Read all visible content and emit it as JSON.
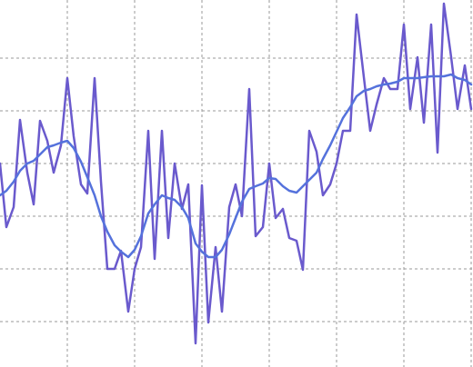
{
  "chart_data": {
    "type": "line",
    "x": [
      0,
      7,
      15,
      22,
      30,
      37,
      44,
      52,
      59,
      67,
      74,
      81,
      89,
      96,
      104,
      111,
      118,
      126,
      133,
      141,
      148,
      155,
      163,
      170,
      178,
      185,
      192,
      200,
      207,
      215,
      222,
      229,
      237,
      244,
      252,
      259,
      266,
      274,
      281,
      289,
      296,
      303,
      311,
      318,
      326,
      333,
      340,
      348,
      355,
      363,
      370,
      377,
      385,
      392,
      400,
      407,
      414,
      422,
      429,
      437,
      444,
      451,
      459,
      466,
      474,
      481,
      488,
      496,
      503,
      511,
      518
    ],
    "series": [
      {
        "color": "#6a5acd",
        "values": [
          224,
          154,
          176,
          272,
          214,
          179,
          271,
          249,
          214,
          244,
          318,
          254,
          201,
          191,
          318,
          204,
          108,
          108,
          128,
          61,
          108,
          132,
          260,
          119,
          260,
          142,
          224,
          174,
          201,
          26,
          200,
          49,
          132,
          61,
          176,
          201,
          166,
          306,
          144,
          154,
          224,
          164,
          174,
          142,
          139,
          107,
          260,
          237,
          189,
          201,
          224,
          260,
          260,
          388,
          319,
          260,
          289,
          318,
          306,
          306,
          377,
          284,
          341,
          269,
          377,
          236,
          400,
          341,
          284,
          332,
          284
        ]
      },
      {
        "color": "#5572dc",
        "values": [
          189,
          194,
          204,
          216,
          224,
          227,
          234,
          242,
          244,
          247,
          249,
          241,
          226,
          209,
          189,
          166,
          149,
          134,
          127,
          121,
          129,
          144,
          169,
          179,
          189,
          186,
          184,
          176,
          164,
          136,
          127,
          121,
          121,
          129,
          146,
          164,
          182,
          196,
          199,
          202,
          208,
          207,
          199,
          194,
          192,
          199,
          206,
          214,
          229,
          244,
          259,
          274,
          286,
          298,
          304,
          306,
          309,
          311,
          312,
          314,
          318,
          318,
          318,
          319,
          320,
          320,
          320,
          322,
          318,
          316,
          311
        ]
      }
    ],
    "xlim": [
      0,
      520
    ],
    "xticks": [
      74,
      148,
      222,
      296,
      370,
      444,
      518
    ],
    "ylim": [
      0,
      404
    ],
    "yticks": [
      50,
      108,
      166,
      224,
      282,
      340
    ],
    "grid": true
  }
}
